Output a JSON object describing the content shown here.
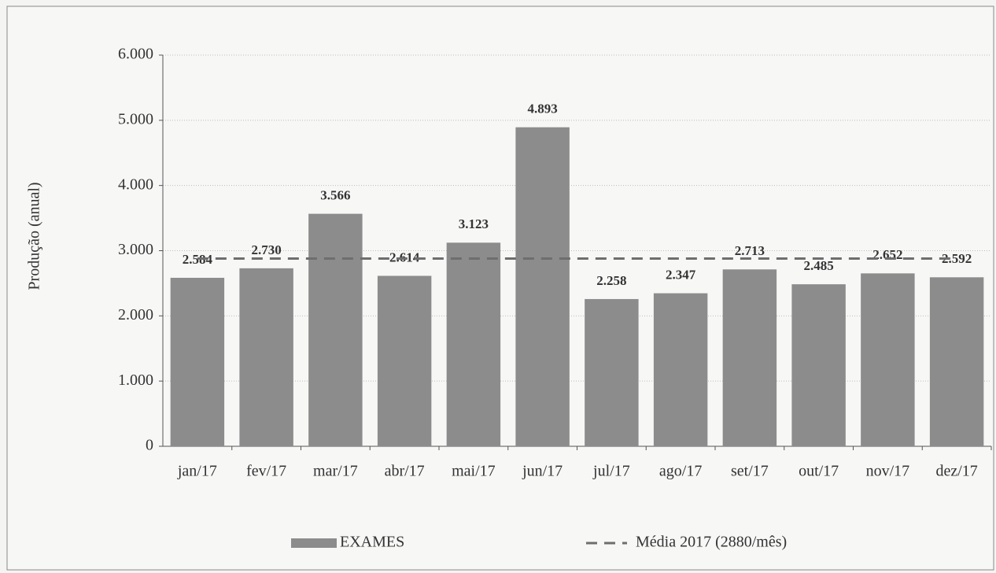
{
  "chart_data": {
    "type": "bar",
    "categories": [
      "jan/17",
      "fev/17",
      "mar/17",
      "abr/17",
      "mai/17",
      "jun/17",
      "jul/17",
      "ago/17",
      "set/17",
      "out/17",
      "nov/17",
      "dez/17"
    ],
    "series": [
      {
        "name": "EXAMES",
        "type": "bar",
        "color": "#8c8c8c",
        "values": [
          2584,
          2730,
          3566,
          2614,
          3123,
          4893,
          2258,
          2347,
          2713,
          2485,
          2652,
          2592
        ],
        "value_labels": [
          "2.584",
          "2.730",
          "3.566",
          "2.614",
          "3.123",
          "4.893",
          "2.258",
          "2.347",
          "2.713",
          "2.485",
          "2.652",
          "2.592"
        ]
      },
      {
        "name": "Média 2017 (2880/mês)",
        "type": "line",
        "color": "#6e6e6e",
        "values": [
          2880,
          2880,
          2880,
          2880,
          2880,
          2880,
          2880,
          2880,
          2880,
          2880,
          2880,
          2880
        ]
      }
    ],
    "y_label": "Produção (anual)",
    "ylim": [
      0,
      6000
    ],
    "yticks": [
      0,
      {
        "value": 1000,
        "label": "1.000"
      },
      {
        "value": 2000,
        "label": "2.000"
      },
      {
        "value": 3000,
        "label": "3.000"
      },
      {
        "value": 4000,
        "label": "4.000"
      },
      {
        "value": 5000,
        "label": "5.000"
      },
      {
        "value": 6000,
        "label": "6.000"
      }
    ],
    "grid": true,
    "legend": "bottom"
  }
}
